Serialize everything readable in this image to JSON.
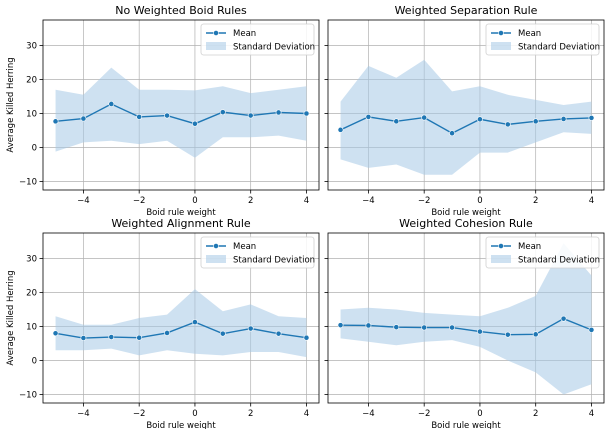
{
  "figure": {
    "shared_ylabel": "Average Killed Herring",
    "shared_xlabel": "Boid rule weight"
  },
  "colors": {
    "mean_line": "#1f77b4",
    "std_fill": "#a6c8e6",
    "grid": "#b0b0b0"
  },
  "legend": {
    "mean": "Mean",
    "std": "Standard Deviation"
  },
  "chart_data": [
    {
      "type": "line",
      "title": "No Weighted Boid Rules",
      "xlabel": "Boid rule weight",
      "ylabel": "Average Killed Herring",
      "x": [
        -5,
        -4,
        -3,
        -2,
        -1,
        0,
        1,
        2,
        3,
        4
      ],
      "mean": [
        7.7,
        8.5,
        12.8,
        9.0,
        9.4,
        7.0,
        10.4,
        9.4,
        10.3,
        10.0
      ],
      "std_upper": [
        17.0,
        15.5,
        23.5,
        17.0,
        17.0,
        16.8,
        18.0,
        16.0,
        17.0,
        18.0
      ],
      "std_lower": [
        -1.2,
        1.5,
        2.0,
        1.0,
        2.0,
        -3.0,
        3.0,
        3.0,
        3.5,
        2.0
      ],
      "xticks": [
        -4,
        -2,
        0,
        2,
        4
      ],
      "yticks": [
        -10,
        0,
        10,
        20,
        30
      ],
      "xlim": [
        -5.45,
        4.45
      ],
      "ylim": [
        -12.5,
        37.5
      ],
      "grid": true,
      "legend_position": "top-right"
    },
    {
      "type": "line",
      "title": "Weighted Separation Rule",
      "xlabel": "Boid rule weight",
      "ylabel": "",
      "x": [
        -5,
        -4,
        -3,
        -2,
        -1,
        0,
        1,
        2,
        3,
        4
      ],
      "mean": [
        5.2,
        9.0,
        7.7,
        8.8,
        4.2,
        8.3,
        6.8,
        7.7,
        8.4,
        8.7
      ],
      "std_upper": [
        13.5,
        24.0,
        20.5,
        25.8,
        16.5,
        18.0,
        15.5,
        14.0,
        12.5,
        13.5
      ],
      "std_lower": [
        -3.5,
        -6.0,
        -5.0,
        -8.0,
        -8.0,
        -1.5,
        -1.5,
        1.5,
        4.5,
        4.0
      ],
      "xticks": [
        -4,
        -2,
        0,
        2,
        4
      ],
      "yticks": [
        -10,
        0,
        10,
        20,
        30
      ],
      "xlim": [
        -5.45,
        4.45
      ],
      "ylim": [
        -12.5,
        37.5
      ],
      "grid": true,
      "legend_position": "top-right"
    },
    {
      "type": "line",
      "title": "Weighted Alignment Rule",
      "xlabel": "Boid rule weight",
      "ylabel": "Average Killed Herring",
      "x": [
        -5,
        -4,
        -3,
        -2,
        -1,
        0,
        1,
        2,
        3,
        4
      ],
      "mean": [
        8.0,
        6.6,
        6.9,
        6.7,
        8.1,
        11.3,
        7.9,
        9.4,
        7.9,
        6.7
      ],
      "std_upper": [
        13.0,
        10.5,
        10.5,
        12.5,
        13.5,
        21.0,
        14.5,
        16.5,
        13.0,
        12.5
      ],
      "std_lower": [
        3.0,
        3.0,
        3.5,
        1.5,
        3.0,
        2.0,
        1.5,
        2.5,
        2.5,
        1.0
      ],
      "xticks": [
        -4,
        -2,
        0,
        2,
        4
      ],
      "yticks": [
        -10,
        0,
        10,
        20,
        30
      ],
      "xlim": [
        -5.45,
        4.45
      ],
      "ylim": [
        -12.5,
        37.5
      ],
      "grid": true,
      "legend_position": "top-right"
    },
    {
      "type": "line",
      "title": "Weighted Cohesion Rule",
      "xlabel": "Boid rule weight",
      "ylabel": "",
      "x": [
        -5,
        -4,
        -3,
        -2,
        -1,
        0,
        1,
        2,
        3,
        4
      ],
      "mean": [
        10.4,
        10.3,
        9.8,
        9.7,
        9.7,
        8.5,
        7.6,
        7.7,
        12.3,
        9.0
      ],
      "std_upper": [
        15.0,
        15.5,
        15.0,
        14.0,
        13.5,
        13.0,
        15.5,
        19.0,
        34.5,
        25.0
      ],
      "std_lower": [
        6.5,
        5.5,
        4.5,
        5.5,
        6.0,
        4.0,
        0.0,
        -3.5,
        -10.0,
        -7.0
      ],
      "xticks": [
        -4,
        -2,
        0,
        2,
        4
      ],
      "yticks": [
        -10,
        0,
        10,
        20,
        30
      ],
      "xlim": [
        -5.45,
        4.45
      ],
      "ylim": [
        -12.5,
        37.5
      ],
      "grid": true,
      "legend_position": "top-right"
    }
  ]
}
